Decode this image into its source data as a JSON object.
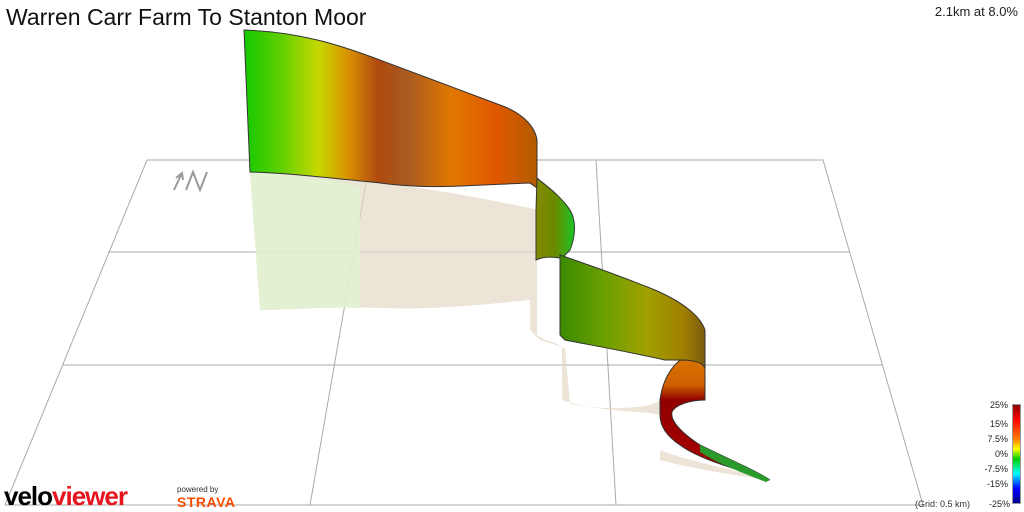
{
  "header": {
    "title": "Warren Carr Farm To Stanton Moor",
    "stats": "2.1km at 8.0%"
  },
  "compass": {
    "label": "N",
    "icon": "north-arrow-icon"
  },
  "legend": {
    "labels": [
      "25%",
      "15%",
      "7.5%",
      "0%",
      "-7.5%",
      "-15%",
      "-25%"
    ],
    "gradient": [
      "#8b0000",
      "#ff0000",
      "#ff8000",
      "#ffff00",
      "#00d000",
      "#00ffff",
      "#0000ff",
      "#00008b"
    ]
  },
  "grid_note": "(Grid: 0.5 km)",
  "branding": {
    "logo_part1": "velo",
    "logo_part2": "viewer",
    "powered_by": "powered by",
    "strava": "STRAVA"
  },
  "colors": {
    "logo_red": "#e8141d",
    "strava_orange": "#fc4c02",
    "grid": "#aaaaaa"
  }
}
